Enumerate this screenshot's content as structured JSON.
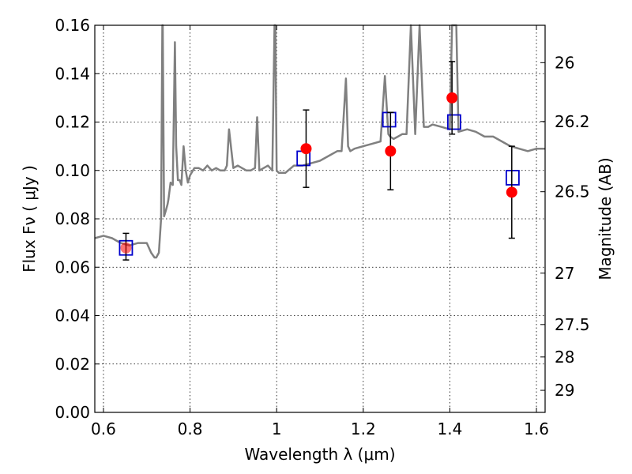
{
  "chart_data": {
    "type": "line",
    "title": "",
    "xlabel": "Wavelength  λ (μm)",
    "ylabel": "Flux  Fν  ( μJy )",
    "y2label": "Magnitude (AB)",
    "xlim": [
      0.58,
      1.62
    ],
    "ylim": [
      0.0,
      0.16
    ],
    "grid": true,
    "x_ticks": [
      0.6,
      0.8,
      1.0,
      1.2,
      1.4,
      1.6
    ],
    "x_tick_labels": [
      "0.6",
      "0.8",
      "1",
      "1.2",
      "1.4",
      "1.6"
    ],
    "y_ticks": [
      0.0,
      0.02,
      0.04,
      0.06,
      0.08,
      0.1,
      0.12,
      0.14,
      0.16
    ],
    "y_tick_labels": [
      "0.00",
      "0.02",
      "0.04",
      "0.06",
      "0.08",
      "0.10",
      "0.12",
      "0.14",
      "0.16"
    ],
    "y2_ticks": [
      {
        "label": "26",
        "mag": 26.0
      },
      {
        "label": "26.2",
        "mag": 26.2
      },
      {
        "label": "26.5",
        "mag": 26.5
      },
      {
        "label": "27",
        "mag": 27.0
      },
      {
        "label": "27.5",
        "mag": 27.5
      },
      {
        "label": "28",
        "mag": 28.0
      },
      {
        "label": "29",
        "mag": 29.0
      }
    ],
    "model_spectrum": {
      "color": "#808080",
      "x": [
        0.58,
        0.6,
        0.62,
        0.63,
        0.64,
        0.66,
        0.68,
        0.7,
        0.71,
        0.718,
        0.722,
        0.728,
        0.733,
        0.736,
        0.737,
        0.74,
        0.745,
        0.748,
        0.75,
        0.755,
        0.76,
        0.765,
        0.768,
        0.772,
        0.776,
        0.78,
        0.785,
        0.79,
        0.795,
        0.8,
        0.81,
        0.82,
        0.83,
        0.84,
        0.85,
        0.86,
        0.87,
        0.88,
        0.885,
        0.89,
        0.9,
        0.91,
        0.92,
        0.93,
        0.94,
        0.95,
        0.955,
        0.96,
        0.97,
        0.98,
        0.99,
        0.995,
        0.997,
        1.0,
        1.005,
        1.02,
        1.04,
        1.06,
        1.08,
        1.1,
        1.12,
        1.14,
        1.15,
        1.16,
        1.165,
        1.17,
        1.18,
        1.2,
        1.22,
        1.24,
        1.25,
        1.258,
        1.262,
        1.27,
        1.28,
        1.29,
        1.3,
        1.31,
        1.32,
        1.33,
        1.34,
        1.35,
        1.36,
        1.38,
        1.4,
        1.405,
        1.41,
        1.415,
        1.42,
        1.44,
        1.46,
        1.48,
        1.5,
        1.52,
        1.54,
        1.56,
        1.58,
        1.6,
        1.62
      ],
      "y": [
        0.072,
        0.073,
        0.072,
        0.071,
        0.07,
        0.069,
        0.07,
        0.07,
        0.066,
        0.064,
        0.064,
        0.066,
        0.08,
        0.16,
        0.16,
        0.081,
        0.084,
        0.086,
        0.088,
        0.095,
        0.094,
        0.153,
        0.11,
        0.096,
        0.096,
        0.094,
        0.11,
        0.1,
        0.095,
        0.098,
        0.101,
        0.101,
        0.1,
        0.102,
        0.1,
        0.101,
        0.1,
        0.1,
        0.102,
        0.117,
        0.101,
        0.102,
        0.101,
        0.1,
        0.1,
        0.101,
        0.122,
        0.1,
        0.101,
        0.102,
        0.1,
        0.16,
        0.16,
        0.1,
        0.099,
        0.099,
        0.102,
        0.102,
        0.103,
        0.104,
        0.106,
        0.108,
        0.108,
        0.138,
        0.11,
        0.108,
        0.109,
        0.11,
        0.111,
        0.112,
        0.139,
        0.115,
        0.114,
        0.113,
        0.114,
        0.115,
        0.115,
        0.16,
        0.115,
        0.16,
        0.118,
        0.118,
        0.119,
        0.118,
        0.117,
        0.16,
        0.16,
        0.16,
        0.116,
        0.117,
        0.116,
        0.114,
        0.114,
        0.112,
        0.11,
        0.109,
        0.108,
        0.109,
        0.109
      ]
    },
    "observed": {
      "name": "",
      "color": "#ff0000",
      "x": [
        0.652,
        1.068,
        1.263,
        1.405,
        1.543
      ],
      "y": [
        0.068,
        0.109,
        0.108,
        0.13,
        0.091
      ],
      "err_low": [
        0.063,
        0.093,
        0.092,
        0.115,
        0.072
      ],
      "err_high": [
        0.074,
        0.125,
        0.124,
        0.145,
        0.11
      ]
    },
    "synthetic": {
      "name": "",
      "color": "#0000cc",
      "x": [
        0.652,
        1.062,
        1.26,
        1.41,
        1.545
      ],
      "y": [
        0.068,
        0.105,
        0.121,
        0.12,
        0.097
      ]
    }
  }
}
